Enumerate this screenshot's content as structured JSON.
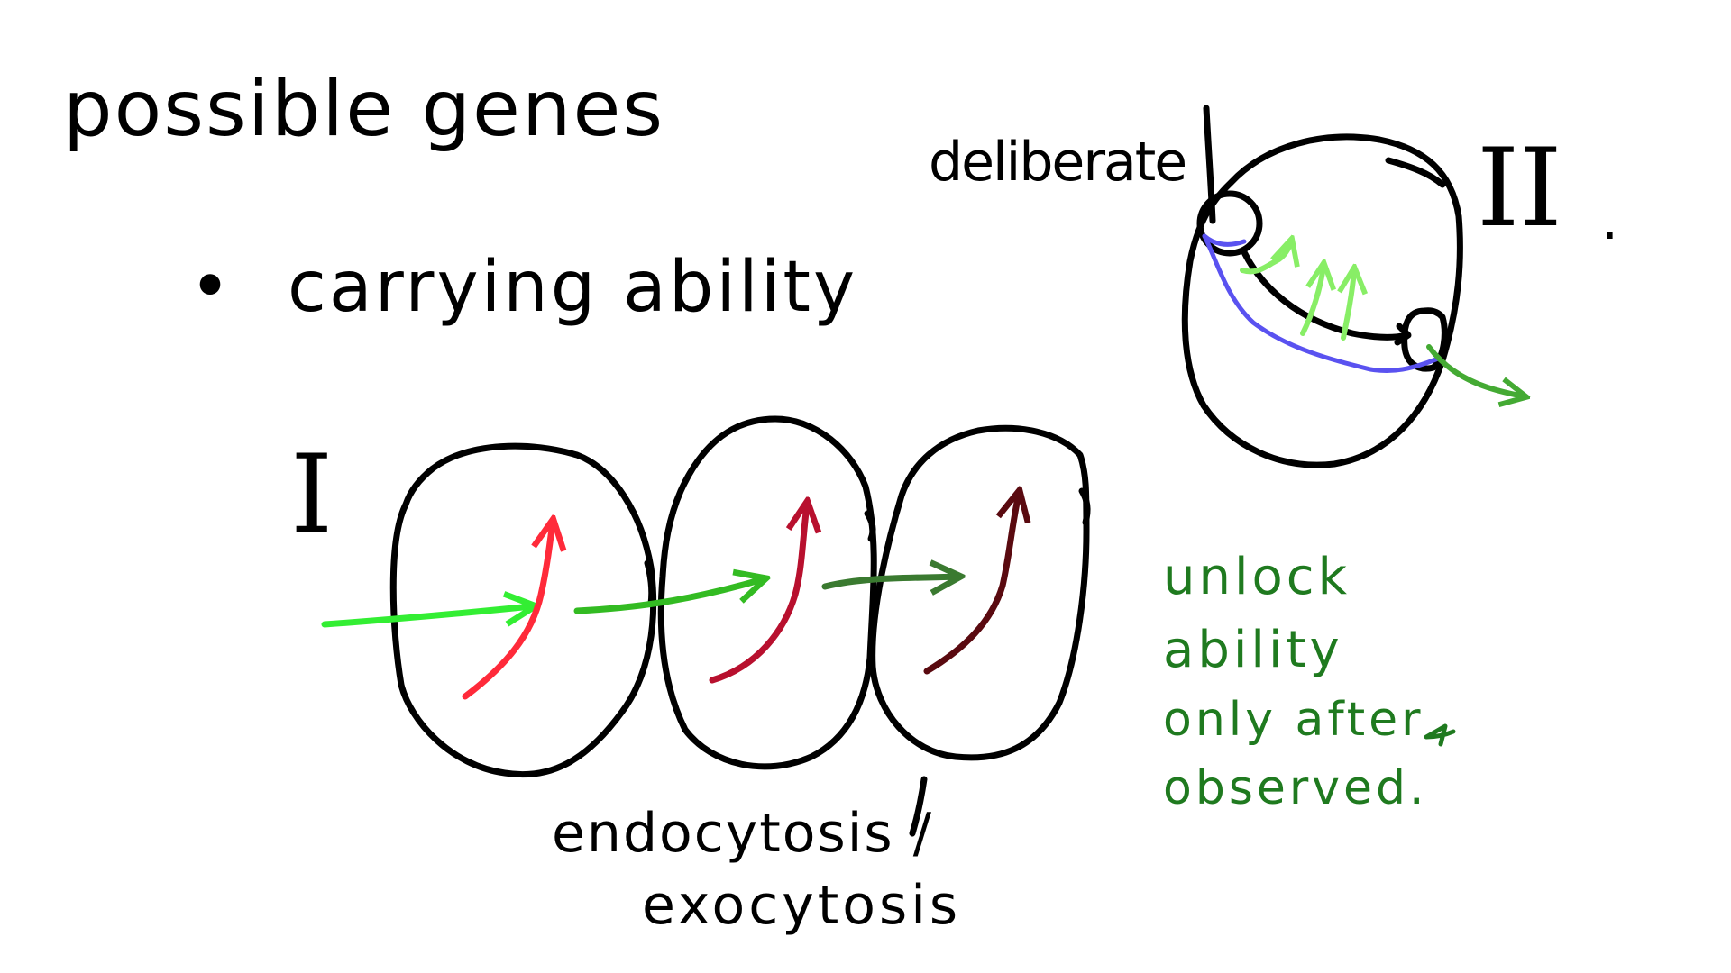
{
  "title": "possible genes",
  "bullet": {
    "marker": "•",
    "text": "carrying ability"
  },
  "diagram_one": {
    "label": "I",
    "caption_line1": "endocytosis /",
    "caption_line2": "exocytosis"
  },
  "diagram_two": {
    "label": "II",
    "label_dot": ".",
    "annotation": "deliberate"
  },
  "note": {
    "lines": [
      "unlock",
      "ability",
      "only after",
      "observed."
    ]
  },
  "colors": {
    "ink": "#000000",
    "note_green": "#1f7a1f",
    "bright_green": "#33ee33",
    "mid_green": "#33bb22",
    "dark_green": "#3a7a30",
    "light_green": "#88ee66",
    "arrow_green": "#44aa33",
    "red": "#ff2a3a",
    "crimson": "#b8102e",
    "maroon": "#5a0a10",
    "purple": "#5a52f0"
  }
}
